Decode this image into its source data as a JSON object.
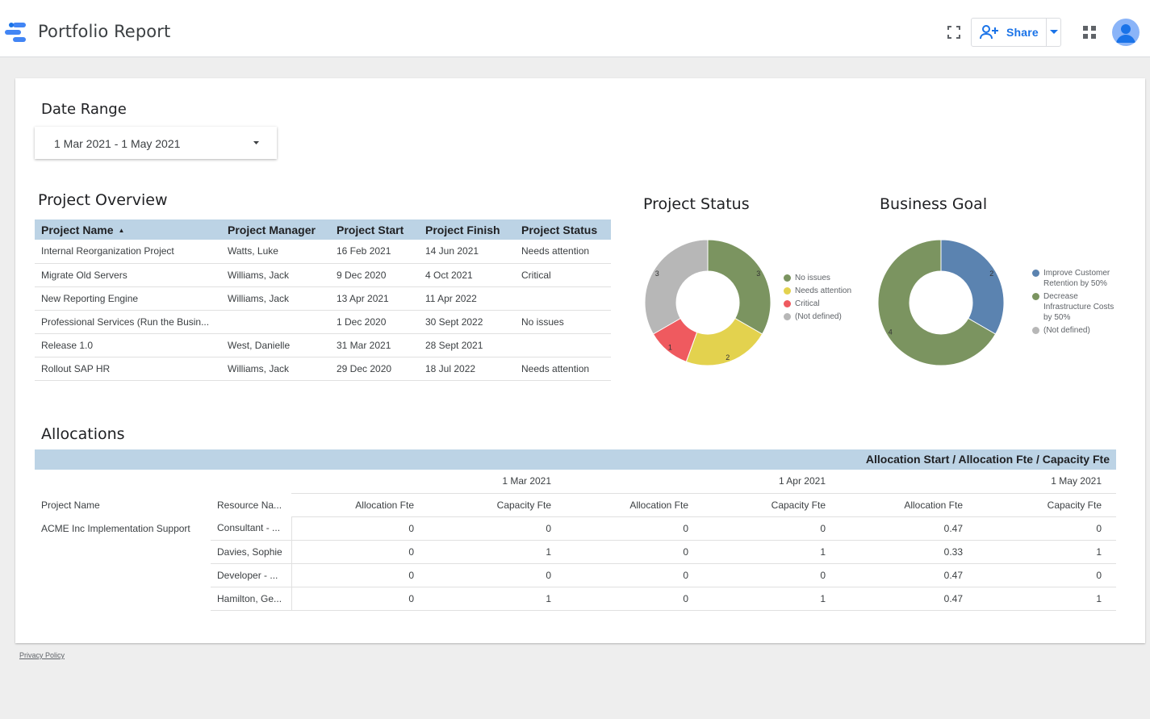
{
  "header": {
    "app_title": "Portfolio Report",
    "share_label": "Share",
    "icons": [
      "looker-studio-logo-icon",
      "fullscreen-icon",
      "add-person-icon",
      "dropdown-arrow-icon",
      "apps-grid-icon",
      "avatar-icon"
    ]
  },
  "date_range": {
    "label": "Date Range",
    "value": "1 Mar 2021 - 1 May 2021"
  },
  "project_overview": {
    "title": "Project Overview",
    "columns": [
      "Project Name",
      "Project Manager",
      "Project Start",
      "Project Finish",
      "Project Status"
    ],
    "rows": [
      [
        "Internal Reorganization Project",
        "Watts, Luke",
        "16 Feb 2021",
        "14 Jun 2021",
        "Needs attention"
      ],
      [
        "Migrate Old Servers",
        "Williams, Jack",
        "9 Dec 2020",
        "4 Oct 2021",
        "Critical"
      ],
      [
        "New Reporting Engine",
        "Williams, Jack",
        "13 Apr 2021",
        "11 Apr 2022",
        ""
      ],
      [
        "Professional Services (Run the Busin...",
        "",
        "1 Dec 2020",
        "30 Sept 2022",
        "No issues"
      ],
      [
        "Release 1.0",
        "West, Danielle",
        "31 Mar 2021",
        "28 Sept 2021",
        ""
      ],
      [
        "Rollout SAP HR",
        "Williams, Jack",
        "29 Dec 2020",
        "18 Jul 2022",
        "Needs attention"
      ]
    ]
  },
  "project_status": {
    "title": "Project Status",
    "slices": [
      {
        "label": "No issues",
        "value": 3,
        "color": "#7b9460"
      },
      {
        "label": "Needs attention",
        "value": 2,
        "color": "#e3d24e"
      },
      {
        "label": "Critical",
        "value": 1,
        "color": "#ef5a5f"
      },
      {
        "label": "(Not defined)",
        "value": 3,
        "color": "#b7b7b7"
      }
    ],
    "legend": [
      "No issues",
      "Needs attention",
      "Critical",
      "(Not defined)"
    ]
  },
  "business_goal": {
    "title": "Business Goal",
    "slices": [
      {
        "label": "Improve Customer Retention by 50%",
        "value": 2,
        "color": "#5b83b0"
      },
      {
        "label": "Decrease Infrastructure Costs by 50%",
        "value": 4,
        "color": "#7b9460"
      },
      {
        "label": "(Not defined)",
        "value": 0,
        "color": "#b7b7b7"
      }
    ],
    "legend": [
      "Improve Customer Retention by 50%",
      "Decrease Infrastructure Costs by 50%",
      "(Not defined)"
    ]
  },
  "allocations": {
    "title": "Allocations",
    "header": "Allocation Start / Allocation Fte / Capacity Fte",
    "dates": [
      "1 Mar 2021",
      "1 Apr 2021",
      "1 May 2021"
    ],
    "col_project": "Project Name",
    "col_resource": "Resource Na...",
    "col_alloc": "Allocation Fte",
    "col_cap": "Capacity Fte",
    "project": "ACME Inc Implementation Support",
    "rows": [
      {
        "resource": "Consultant - ...",
        "values": [
          "0",
          "0",
          "0",
          "0",
          "0.47",
          "0"
        ]
      },
      {
        "resource": "Davies, Sophie",
        "values": [
          "0",
          "1",
          "0",
          "1",
          "0.33",
          "1"
        ]
      },
      {
        "resource": "Developer - ...",
        "values": [
          "0",
          "0",
          "0",
          "0",
          "0.47",
          "0"
        ]
      },
      {
        "resource": "Hamilton, Ge...",
        "values": [
          "0",
          "1",
          "0",
          "1",
          "0.47",
          "1"
        ]
      }
    ]
  },
  "footer": {
    "privacy": "Privacy Policy"
  }
}
